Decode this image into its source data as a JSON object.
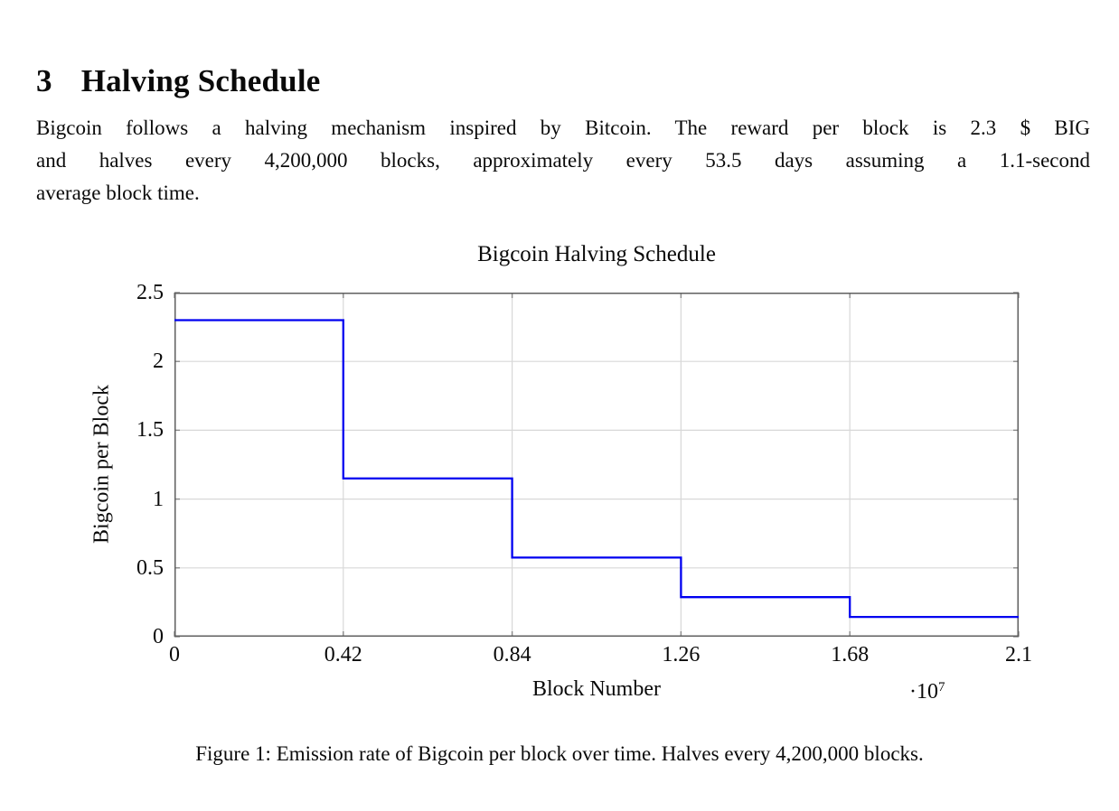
{
  "document": {
    "section_number": "3",
    "section_title": "Halving Schedule",
    "paragraph_lines": [
      "Bigcoin follows a halving mechanism inspired by Bitcoin. The reward per block is 2.3 $ BIG",
      "and halves every 4,200,000 blocks, approximately every 53.5 days assuming a 1.1-second",
      "average block time."
    ],
    "figure_caption": "Figure 1: Emission rate of Bigcoin per block over time. Halves every 4,200,000 blocks."
  },
  "chart_data": {
    "type": "line",
    "subtype": "step",
    "title": "Bigcoin Halving Schedule",
    "xlabel": "Block Number",
    "ylabel": "Bigcoin per Block",
    "x_axis_multiplier": {
      "text": "·10",
      "exponent": "7"
    },
    "xlim": [
      0,
      21000000
    ],
    "ylim": [
      0,
      2.5
    ],
    "x_ticks": {
      "values": [
        0,
        4200000,
        8400000,
        12600000,
        16800000,
        21000000
      ],
      "labels": [
        "0",
        "0.42",
        "0.84",
        "1.26",
        "1.68",
        "2.1"
      ]
    },
    "y_ticks": {
      "values": [
        0,
        0.5,
        1,
        1.5,
        2,
        2.5
      ],
      "labels": [
        "0",
        "0.5",
        "1",
        "1.5",
        "2",
        "2.5"
      ]
    },
    "grid": true,
    "legend": null,
    "colors": {
      "line": "#0000f0",
      "grid": "#d8d8d8",
      "frame": "#5f5f5f",
      "tick": "#8a8a8a"
    },
    "series": [
      {
        "name": "Bigcoin per Block",
        "color": "#0000f0",
        "points": [
          [
            0,
            2.3
          ],
          [
            4200000,
            2.3
          ],
          [
            4200000,
            1.15
          ],
          [
            8400000,
            1.15
          ],
          [
            8400000,
            0.575
          ],
          [
            12600000,
            0.575
          ],
          [
            12600000,
            0.2875
          ],
          [
            16800000,
            0.2875
          ],
          [
            16800000,
            0.14375
          ],
          [
            21000000,
            0.14375
          ]
        ]
      }
    ]
  }
}
